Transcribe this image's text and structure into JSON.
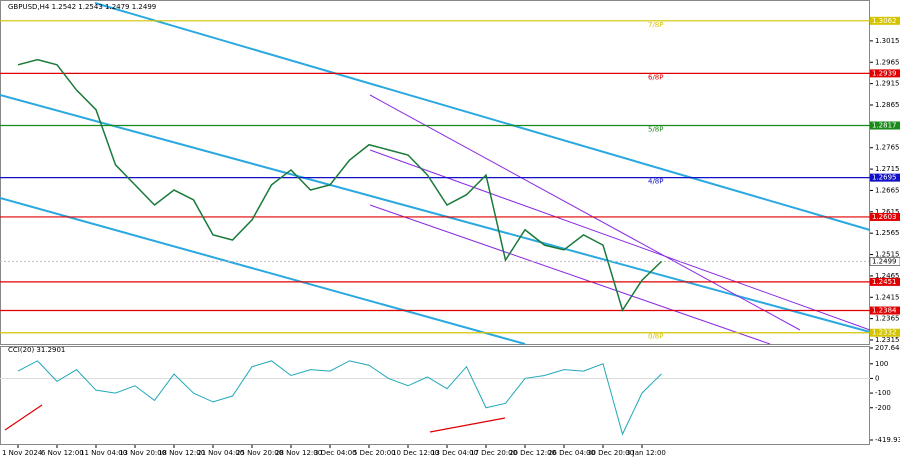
{
  "chart_data": {
    "type": "line",
    "title": "GBPUSD,H4 1.2542 1.2543 1.2479 1.2499",
    "categories": [
      "1 Nov 2024",
      null,
      "6 Nov 12:00",
      null,
      "11 Nov 04:00",
      null,
      "13 Nov 20:00",
      null,
      "18 Nov 12:00",
      null,
      "21 Nov 04:00",
      null,
      "25 Nov 20:00",
      null,
      "28 Nov 12:00",
      null,
      "3 Dec 04:00",
      null,
      "5 Dec 20:00",
      null,
      "10 Dec 12:00",
      null,
      "13 Dec 04:00",
      null,
      "17 Dec 20:00",
      null,
      "20 Dec 12:00",
      null,
      "26 Dec 04:00",
      null,
      "30 Dec 20:00",
      null,
      "3 Jan 12:00",
      null
    ],
    "series": [
      {
        "color": "#1a7a3a",
        "values": [
          1.2959,
          1.2971,
          1.2959,
          1.29,
          1.2854,
          1.2725,
          1.2678,
          1.2631,
          1.2666,
          1.2643,
          1.2561,
          1.2549,
          1.2596,
          1.2678,
          1.2713,
          1.2666,
          1.2678,
          1.2736,
          1.2772,
          1.276,
          1.2748,
          1.2701,
          1.2631,
          1.2655,
          1.2701,
          1.2502,
          1.2573,
          1.2537,
          1.2526,
          1.2561,
          1.2537,
          1.2385,
          1.2455,
          1.2499
        ]
      }
    ],
    "ylim": [
      1.2308,
      1.3099
    ],
    "yticks": [
      1.3015,
      1.2965,
      1.2915,
      1.2865,
      1.2815,
      1.2765,
      1.2715,
      1.2665,
      1.2615,
      1.2565,
      1.2515,
      1.2465,
      1.2415,
      1.2365,
      1.2315
    ],
    "last_price": 1.2499,
    "levels": [
      {
        "name": "7/8P",
        "value": 1.3062,
        "color": "#d4c400"
      },
      {
        "name": "6/8P",
        "value": 1.2939,
        "color": "#e00000"
      },
      {
        "name": "5/8P",
        "value": 1.2817,
        "color": "#1a8a1a"
      },
      {
        "name": "4/8P",
        "value": 1.2695,
        "color": "#1010c8"
      },
      {
        "value": 1.2603,
        "color": "#e00000"
      },
      {
        "value": 1.2451,
        "color": "#e00000"
      },
      {
        "value": 1.2384,
        "color": "#e00000"
      },
      {
        "name": "0/8P",
        "value": 1.2332,
        "color": "#d4c400"
      }
    ],
    "cci": {
      "title": "CCI(20) 31.2901",
      "color": "#20a8b8",
      "values": [
        50,
        120,
        -20,
        60,
        -80,
        -100,
        -50,
        -150,
        30,
        -100,
        -160,
        -120,
        80,
        120,
        20,
        60,
        50,
        120,
        90,
        0,
        -50,
        10,
        -70,
        80,
        -200,
        -170,
        0,
        20,
        60,
        50,
        100,
        -380,
        -100,
        31.2901
      ],
      "ylim": [
        -419.934,
        207.6441
      ],
      "yticks": [
        207.6441,
        100,
        0,
        -100,
        -200,
        -419.934
      ]
    }
  }
}
